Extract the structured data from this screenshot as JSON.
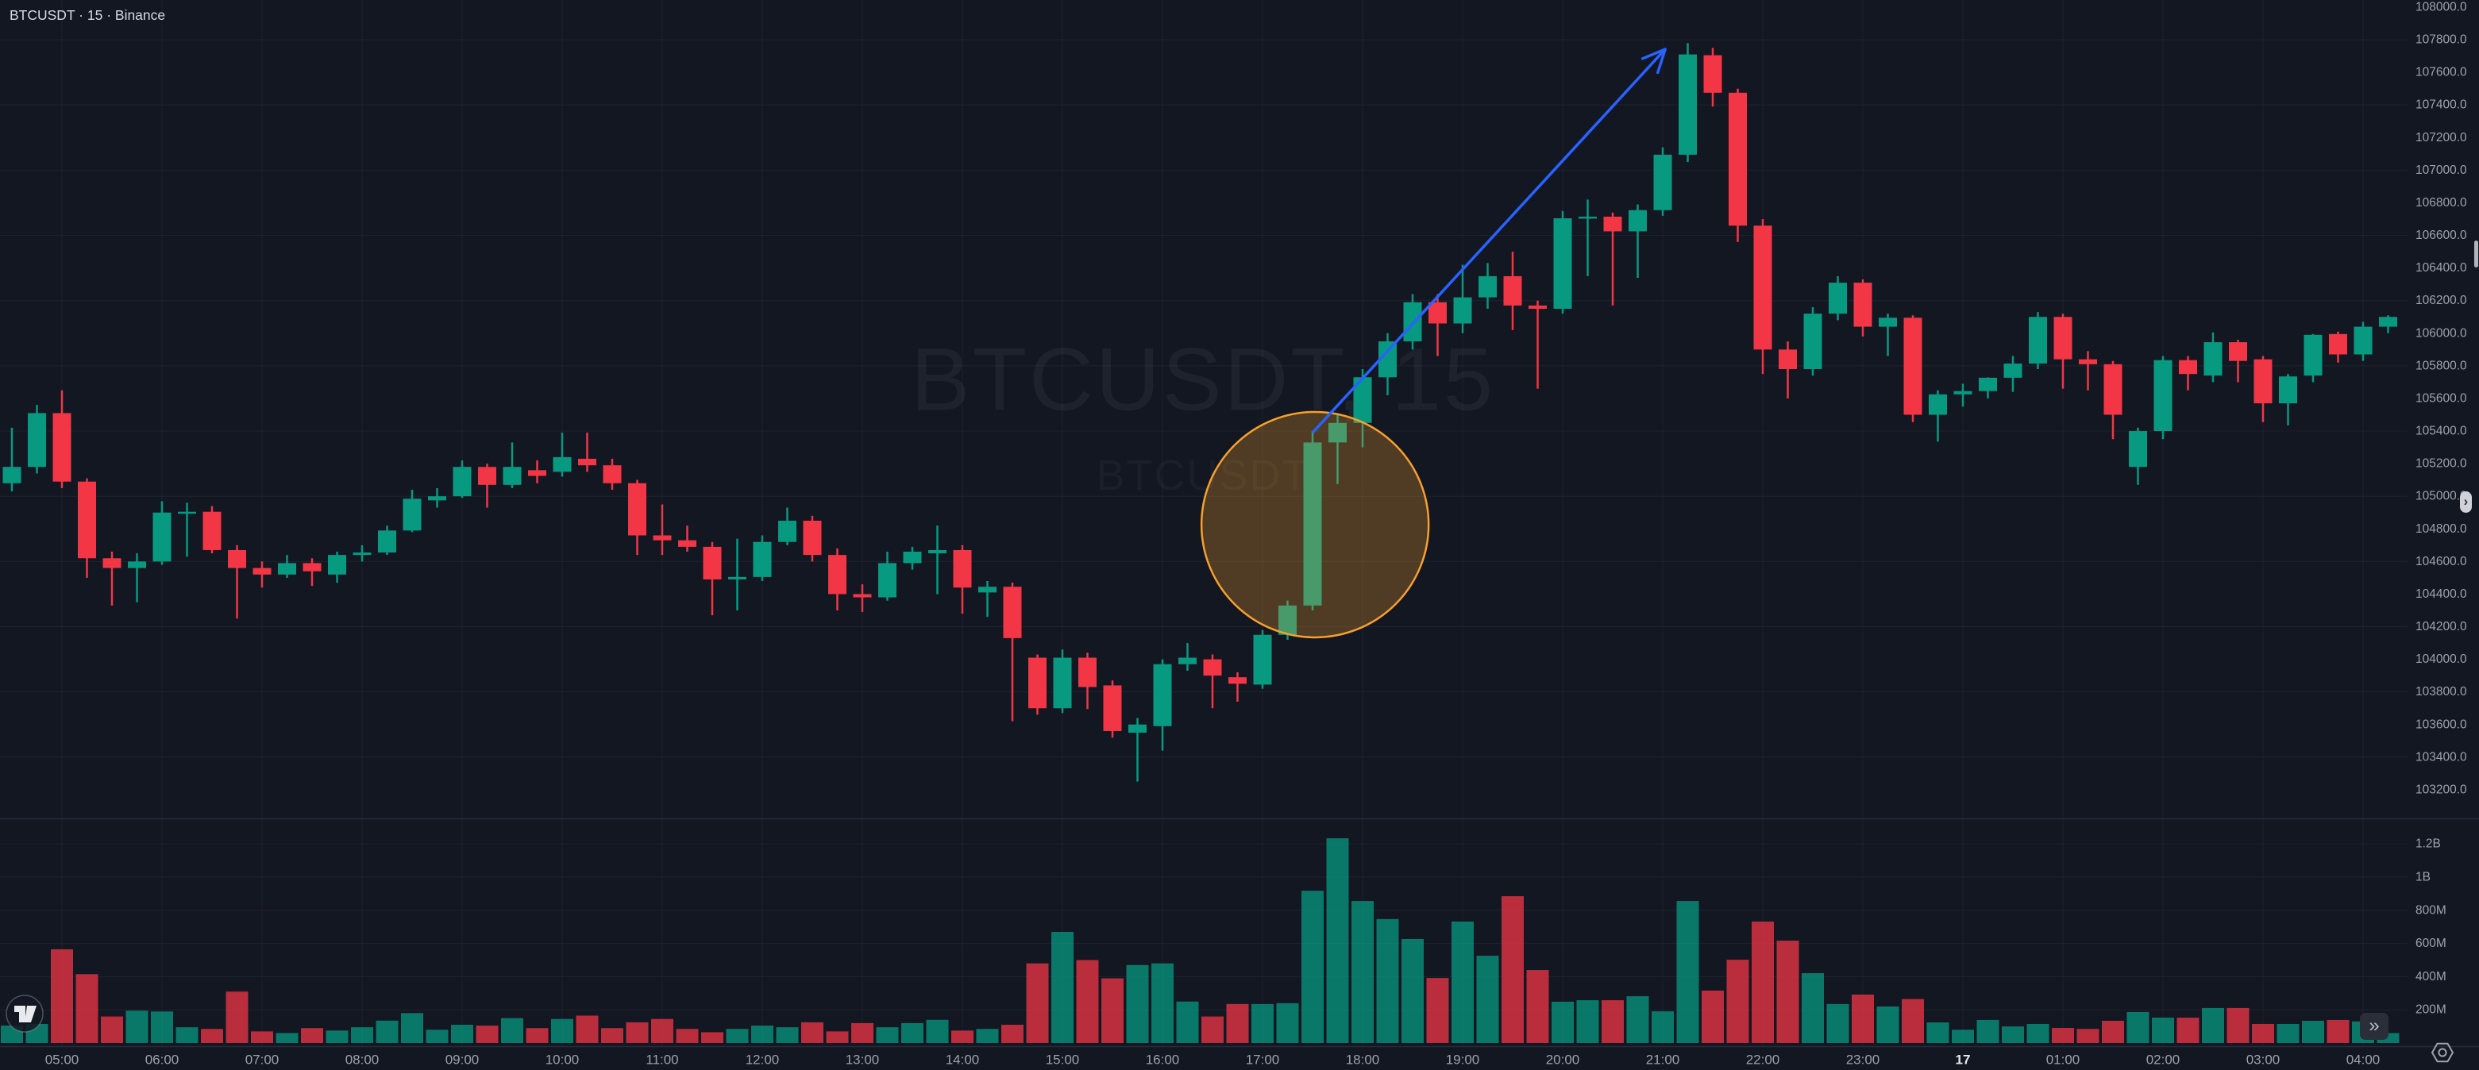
{
  "header": {
    "symbol_title": "BTCUSDT · 15 · Binance"
  },
  "watermark": {
    "line1": "BTCUSDT, 15",
    "line2": "BTCUSDT"
  },
  "colors": {
    "background": "#131722",
    "grid": "rgba(255,255,255,0.05)",
    "bull": "#089981",
    "bear": "#f23645",
    "volume_opacity": 0.75,
    "arrow": "#2962ff",
    "highlight_stroke": "#f7a02d",
    "highlight_fill": "rgba(247,160,45,0.27)",
    "axis_text": "#9da2ad",
    "date_label_text": "#e6e8ec",
    "title_text": "#d6d9e0",
    "watermark_big": "rgba(224,230,240,0.055)",
    "watermark_small": "rgba(224,230,240,0.04)",
    "separator": "#262b3a",
    "button_bg": "#2a2e39",
    "button_glyph": "#b9bdc7"
  },
  "widgets": {
    "goto_realtime_glyph": "»",
    "price_scale_chevron": "›",
    "gear_icon": "settings-gear",
    "tv_logo": "tradingview-logo"
  },
  "chart_data": {
    "type": "candlestick_with_volume",
    "symbol": "BTCUSDT",
    "interval": "15",
    "exchange": "Binance",
    "price_axis": {
      "labels": [
        "108000.0",
        "107800.0",
        "107600.0",
        "107400.0",
        "107200.0",
        "107000.0",
        "106800.0",
        "106600.0",
        "106400.0",
        "106200.0",
        "106000.0",
        "105800.0",
        "105600.0",
        "105400.0",
        "105200.0",
        "105000.0",
        "104800.0",
        "104600.0",
        "104400.0",
        "104200.0",
        "104000.0",
        "103800.0",
        "103600.0",
        "103400.0",
        "103200.0"
      ],
      "top_label_value": 108000,
      "step": 200,
      "gridline_prices": [
        103400,
        103800,
        104200,
        104600,
        105000,
        105400,
        105800,
        106200,
        106600,
        107000,
        107400,
        107800
      ]
    },
    "volume_axis": {
      "labels": [
        {
          "text": "1.2B",
          "m": 1200
        },
        {
          "text": "1B",
          "m": 1000
        },
        {
          "text": "800M",
          "m": 800
        },
        {
          "text": "600M",
          "m": 600
        },
        {
          "text": "400M",
          "m": 400
        },
        {
          "text": "200M",
          "m": 200
        }
      ]
    },
    "time_axis": {
      "labels": [
        {
          "text": "05:00",
          "h": 5
        },
        {
          "text": "06:00",
          "h": 6
        },
        {
          "text": "07:00",
          "h": 7
        },
        {
          "text": "08:00",
          "h": 8
        },
        {
          "text": "09:00",
          "h": 9
        },
        {
          "text": "10:00",
          "h": 10
        },
        {
          "text": "11:00",
          "h": 11
        },
        {
          "text": "12:00",
          "h": 12
        },
        {
          "text": "13:00",
          "h": 13
        },
        {
          "text": "14:00",
          "h": 14
        },
        {
          "text": "15:00",
          "h": 15
        },
        {
          "text": "16:00",
          "h": 16
        },
        {
          "text": "17:00",
          "h": 17
        },
        {
          "text": "18:00",
          "h": 18
        },
        {
          "text": "19:00",
          "h": 19
        },
        {
          "text": "20:00",
          "h": 20
        },
        {
          "text": "21:00",
          "h": 21
        },
        {
          "text": "22:00",
          "h": 22
        },
        {
          "text": "23:00",
          "h": 23
        },
        {
          "text": "17",
          "h": 24,
          "bold": true
        },
        {
          "text": "01:00",
          "h": 25
        },
        {
          "text": "02:00",
          "h": 26
        },
        {
          "text": "03:00",
          "h": 27
        },
        {
          "text": "04:00",
          "h": 28
        }
      ],
      "gridline_hours": [
        5,
        6,
        7,
        8,
        9,
        10,
        11,
        12,
        13,
        14,
        15,
        16,
        17,
        18,
        19,
        20,
        21,
        22,
        23,
        24,
        25,
        26,
        27,
        28
      ]
    },
    "candle_columns": [
      "time",
      "open",
      "high",
      "low",
      "close",
      "volume_millions"
    ],
    "candles": [
      [
        "04:30",
        105080,
        105420,
        105030,
        105180,
        105
      ],
      [
        "04:45",
        105180,
        105560,
        105140,
        105510,
        115
      ],
      [
        "05:00",
        105510,
        105650,
        105050,
        105090,
        565
      ],
      [
        "05:15",
        105090,
        105110,
        104500,
        104620,
        415
      ],
      [
        "05:30",
        104620,
        104660,
        104330,
        104560,
        160
      ],
      [
        "05:45",
        104560,
        104650,
        104350,
        104600,
        195
      ],
      [
        "06:00",
        104600,
        104970,
        104580,
        104900,
        190
      ],
      [
        "06:15",
        104900,
        104960,
        104630,
        104905,
        95
      ],
      [
        "06:30",
        104905,
        104940,
        104650,
        104670,
        85
      ],
      [
        "06:45",
        104670,
        104700,
        104250,
        104560,
        310
      ],
      [
        "07:00",
        104560,
        104600,
        104440,
        104520,
        70
      ],
      [
        "07:15",
        104520,
        104640,
        104500,
        104590,
        60
      ],
      [
        "07:30",
        104590,
        104620,
        104450,
        104540,
        90
      ],
      [
        "07:45",
        104520,
        104660,
        104470,
        104640,
        75
      ],
      [
        "08:00",
        104640,
        104700,
        104600,
        104655,
        95
      ],
      [
        "08:15",
        104655,
        104820,
        104640,
        104790,
        135
      ],
      [
        "08:30",
        104790,
        105040,
        104780,
        104985,
        180
      ],
      [
        "08:45",
        104975,
        105050,
        104930,
        105000,
        80
      ],
      [
        "09:00",
        105000,
        105220,
        104990,
        105180,
        110
      ],
      [
        "09:15",
        105180,
        105200,
        104930,
        105070,
        105
      ],
      [
        "09:30",
        105070,
        105330,
        105050,
        105180,
        150
      ],
      [
        "09:45",
        105160,
        105220,
        105080,
        105125,
        90
      ],
      [
        "10:00",
        105150,
        105390,
        105120,
        105240,
        145
      ],
      [
        "10:15",
        105230,
        105390,
        105150,
        105190,
        165
      ],
      [
        "10:30",
        105190,
        105230,
        105040,
        105080,
        90
      ],
      [
        "10:45",
        105080,
        105100,
        104640,
        104760,
        125
      ],
      [
        "11:00",
        104760,
        104950,
        104640,
        104730,
        145
      ],
      [
        "11:15",
        104730,
        104820,
        104660,
        104690,
        85
      ],
      [
        "11:30",
        104690,
        104720,
        104270,
        104490,
        65
      ],
      [
        "11:45",
        104490,
        104740,
        104300,
        104505,
        85
      ],
      [
        "12:00",
        104505,
        104760,
        104480,
        104720,
        105
      ],
      [
        "12:15",
        104720,
        104930,
        104700,
        104850,
        95
      ],
      [
        "12:30",
        104850,
        104880,
        104600,
        104640,
        125
      ],
      [
        "12:45",
        104640,
        104680,
        104300,
        104400,
        70
      ],
      [
        "13:00",
        104400,
        104460,
        104290,
        104380,
        120
      ],
      [
        "13:15",
        104380,
        104660,
        104360,
        104590,
        95
      ],
      [
        "13:30",
        104590,
        104690,
        104550,
        104660,
        120
      ],
      [
        "13:45",
        104650,
        104820,
        104400,
        104670,
        140
      ],
      [
        "14:00",
        104670,
        104700,
        104280,
        104440,
        75
      ],
      [
        "14:15",
        104410,
        104480,
        104260,
        104445,
        85
      ],
      [
        "14:30",
        104445,
        104470,
        103620,
        104130,
        110
      ],
      [
        "14:45",
        104010,
        104030,
        103660,
        103700,
        480
      ],
      [
        "15:00",
        103700,
        104060,
        103670,
        104010,
        670
      ],
      [
        "15:15",
        104010,
        104040,
        103695,
        103830,
        500
      ],
      [
        "15:30",
        103840,
        103870,
        103520,
        103560,
        390
      ],
      [
        "15:45",
        103550,
        103640,
        103250,
        103600,
        470
      ],
      [
        "16:00",
        103590,
        104000,
        103440,
        103970,
        480
      ],
      [
        "16:15",
        103970,
        104100,
        103930,
        104010,
        250
      ],
      [
        "16:30",
        104000,
        104030,
        103700,
        103900,
        160
      ],
      [
        "16:45",
        103890,
        103920,
        103740,
        103850,
        235
      ],
      [
        "17:00",
        103845,
        104180,
        103820,
        104150,
        235
      ],
      [
        "17:15",
        104150,
        104360,
        104120,
        104330,
        240
      ],
      [
        "17:30",
        104330,
        105400,
        104300,
        105330,
        918
      ],
      [
        "17:45",
        105330,
        105500,
        105075,
        105450,
        1234
      ],
      [
        "18:00",
        105450,
        105780,
        105300,
        105730,
        856
      ],
      [
        "18:15",
        105730,
        106000,
        105620,
        105950,
        747
      ],
      [
        "18:30",
        105950,
        106240,
        105900,
        106190,
        627
      ],
      [
        "18:45",
        106190,
        106240,
        105860,
        106060,
        392
      ],
      [
        "19:00",
        106060,
        106420,
        106000,
        106220,
        732
      ],
      [
        "19:15",
        106220,
        106430,
        106150,
        106350,
        526
      ],
      [
        "19:30",
        106350,
        106500,
        106020,
        106170,
        885
      ],
      [
        "19:45",
        106170,
        106200,
        105660,
        106150,
        440
      ],
      [
        "20:00",
        106150,
        106750,
        106120,
        106705,
        249
      ],
      [
        "20:15",
        106705,
        106820,
        106350,
        106715,
        258
      ],
      [
        "20:30",
        106715,
        106740,
        106170,
        106625,
        258
      ],
      [
        "20:45",
        106625,
        106790,
        106340,
        106755,
        282
      ],
      [
        "21:00",
        106755,
        107140,
        106720,
        107095,
        191
      ],
      [
        "21:15",
        107095,
        107780,
        107050,
        107710,
        856
      ],
      [
        "21:30",
        107705,
        107750,
        107390,
        107475,
        316
      ],
      [
        "21:45",
        107475,
        107500,
        106560,
        106660,
        502
      ],
      [
        "22:00",
        106660,
        106700,
        105750,
        105900,
        732
      ],
      [
        "22:15",
        105900,
        105950,
        105600,
        105780,
        617
      ],
      [
        "22:30",
        105780,
        106160,
        105740,
        106120,
        421
      ],
      [
        "22:45",
        106120,
        106350,
        106080,
        106310,
        235
      ],
      [
        "23:00",
        106310,
        106330,
        105980,
        106040,
        292
      ],
      [
        "23:15",
        106040,
        106120,
        105860,
        106095,
        220
      ],
      [
        "23:30",
        106095,
        106110,
        105455,
        105500,
        265
      ],
      [
        "23:45",
        105500,
        105650,
        105335,
        105625,
        124
      ],
      [
        "00:00",
        105625,
        105690,
        105550,
        105645,
        80
      ],
      [
        "00:15",
        105645,
        105730,
        105600,
        105727,
        139
      ],
      [
        "00:30",
        105727,
        105860,
        105640,
        105814,
        100
      ],
      [
        "00:45",
        105814,
        106130,
        105780,
        106100,
        115
      ],
      [
        "01:00",
        106100,
        106120,
        105660,
        105840,
        91
      ],
      [
        "01:15",
        105840,
        105890,
        105650,
        105810,
        85
      ],
      [
        "01:30",
        105810,
        105830,
        105350,
        105500,
        134
      ],
      [
        "01:45",
        105180,
        105420,
        105070,
        105400,
        187
      ],
      [
        "02:00",
        105400,
        105860,
        105350,
        105835,
        153
      ],
      [
        "02:15",
        105835,
        105860,
        105650,
        105750,
        153
      ],
      [
        "02:30",
        105740,
        106005,
        105700,
        105945,
        211
      ],
      [
        "02:45",
        105945,
        105960,
        105700,
        105830,
        211
      ],
      [
        "03:00",
        105840,
        105860,
        105455,
        105570,
        115
      ],
      [
        "03:15",
        105570,
        105750,
        105435,
        105735,
        115
      ],
      [
        "03:30",
        105740,
        105995,
        105700,
        105990,
        134
      ],
      [
        "03:45",
        105995,
        106010,
        105820,
        105870,
        139
      ],
      [
        "04:00",
        105870,
        106070,
        105830,
        106040,
        130
      ],
      [
        "04:15",
        106040,
        106110,
        106000,
        106100,
        60
      ]
    ],
    "annotations": {
      "highlight_circle": {
        "candle_index": 52.1,
        "price": 104826,
        "rx": 143,
        "ry": 142
      },
      "trend_arrow": {
        "from": {
          "candle_index": 52.0,
          "price": 105390
        },
        "to": {
          "candle_index": 66.1,
          "price": 107742
        }
      }
    }
  }
}
